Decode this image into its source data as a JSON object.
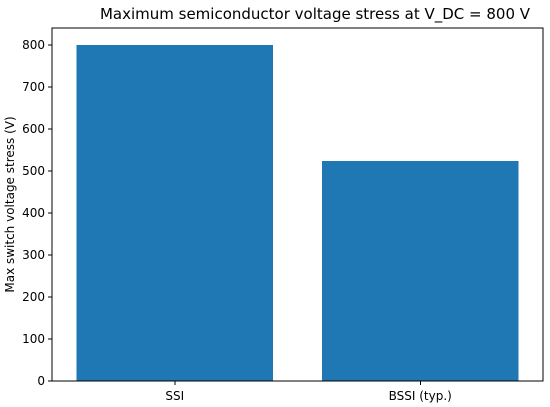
{
  "chart_data": {
    "type": "bar",
    "title": "Maximum semiconductor voltage stress at V_DC = 800 V",
    "xlabel": "",
    "ylabel": "Max switch voltage stress (V)",
    "categories": [
      "SSI",
      "BSSI (typ.)"
    ],
    "values": [
      800,
      524
    ],
    "ylim": [
      0,
      840
    ],
    "yticks": [
      0,
      100,
      200,
      300,
      400,
      500,
      600,
      700,
      800
    ],
    "grid": false,
    "legend": "none",
    "bar_color": "#1f77b4"
  }
}
